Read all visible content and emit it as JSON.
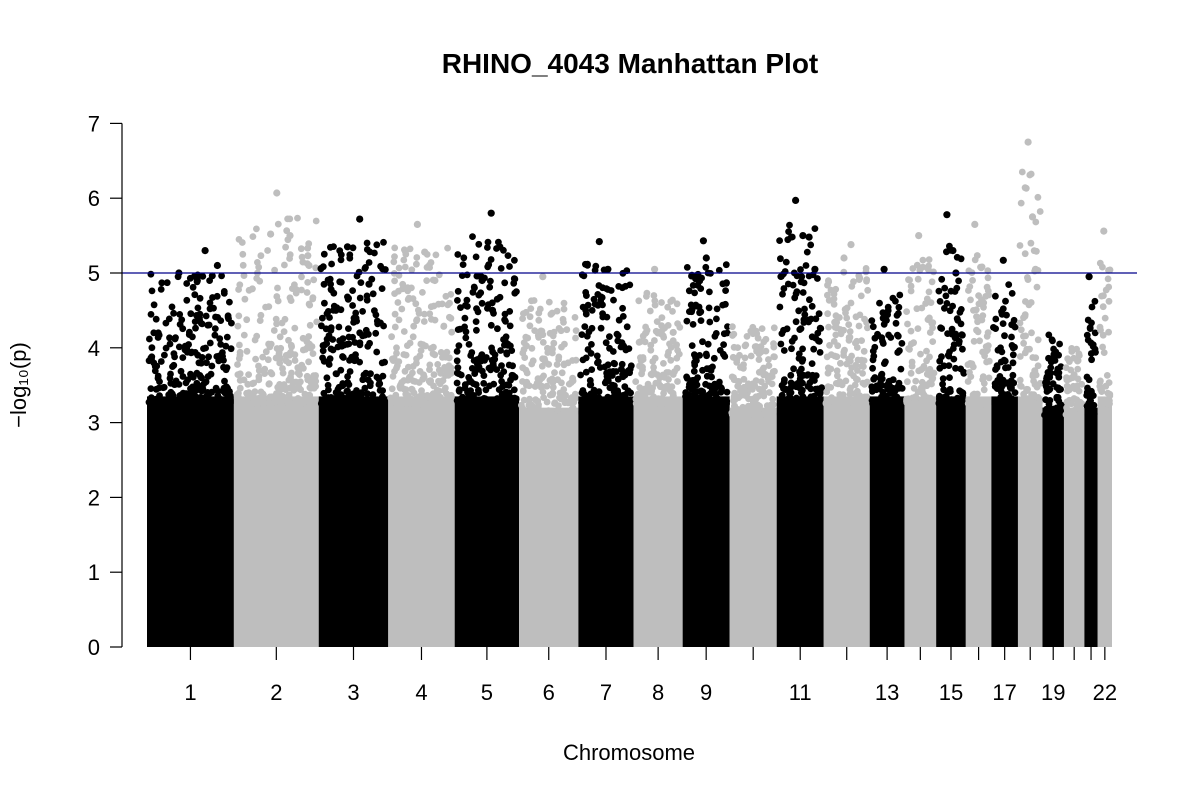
{
  "chart_data": {
    "type": "scatter",
    "title": "RHINO_4043 Manhattan Plot",
    "xlabel": "Chromosome",
    "ylabel": "−log₁₀(p)",
    "ylim": [
      0,
      7
    ],
    "yticks": [
      0,
      1,
      2,
      3,
      4,
      5,
      6,
      7
    ],
    "threshold": 5,
    "colors": {
      "odd": "#000000",
      "even": "#bebebe",
      "threshold_line": "#00008b"
    },
    "chromosomes": [
      {
        "chr": 1,
        "label": "1",
        "peak": 5.3,
        "hits": [
          5.0,
          4.9,
          5.3,
          5.1
        ]
      },
      {
        "chr": 2,
        "label": "2",
        "peak": 6.07,
        "hits": [
          5.52,
          6.07,
          5.5,
          5.1
        ]
      },
      {
        "chr": 3,
        "label": "3",
        "peak": 5.72,
        "hits": [
          5.35,
          5.72,
          4.85
        ]
      },
      {
        "chr": 4,
        "label": "4",
        "peak": 5.65,
        "hits": [
          5.65,
          5.28,
          4.9
        ]
      },
      {
        "chr": 5,
        "label": "5",
        "peak": 5.8,
        "hits": [
          4.9,
          5.8,
          5.35
        ]
      },
      {
        "chr": 6,
        "label": "6",
        "peak": 4.95,
        "hits": [
          4.95
        ]
      },
      {
        "chr": 7,
        "label": "7",
        "peak": 5.42,
        "hits": [
          5.42,
          5.05
        ]
      },
      {
        "chr": 8,
        "label": "8",
        "peak": 5.05,
        "hits": [
          5.05
        ]
      },
      {
        "chr": 9,
        "label": "9",
        "peak": 5.43,
        "hits": [
          5.43,
          5.2
        ]
      },
      {
        "chr": 10,
        "label": "",
        "peak": 4.6,
        "hits": []
      },
      {
        "chr": 11,
        "label": "11",
        "peak": 5.97,
        "hits": [
          5.97,
          5.5,
          5.48,
          5.05
        ]
      },
      {
        "chr": 12,
        "label": "",
        "peak": 5.38,
        "hits": [
          5.2,
          5.38
        ]
      },
      {
        "chr": 13,
        "label": "13",
        "peak": 5.05,
        "hits": [
          5.05
        ]
      },
      {
        "chr": 14,
        "label": "",
        "peak": 5.5,
        "hits": [
          5.5
        ]
      },
      {
        "chr": 15,
        "label": "15",
        "peak": 5.78,
        "hits": [
          5.78,
          5.3,
          5.0
        ]
      },
      {
        "chr": 16,
        "label": "",
        "peak": 5.65,
        "hits": [
          5.65
        ]
      },
      {
        "chr": 17,
        "label": "17",
        "peak": 5.17,
        "hits": [
          5.17
        ]
      },
      {
        "chr": 18,
        "label": "",
        "peak": 6.75,
        "hits": [
          6.75,
          5.75,
          5.05
        ]
      },
      {
        "chr": 19,
        "label": "19",
        "peak": 4.55,
        "hits": []
      },
      {
        "chr": 20,
        "label": "",
        "peak": 4.3,
        "hits": []
      },
      {
        "chr": 21,
        "label": "",
        "peak": 4.95,
        "hits": [
          4.95
        ]
      },
      {
        "chr": 22,
        "label": "22",
        "peak": 5.56,
        "hits": [
          5.56
        ]
      }
    ]
  }
}
